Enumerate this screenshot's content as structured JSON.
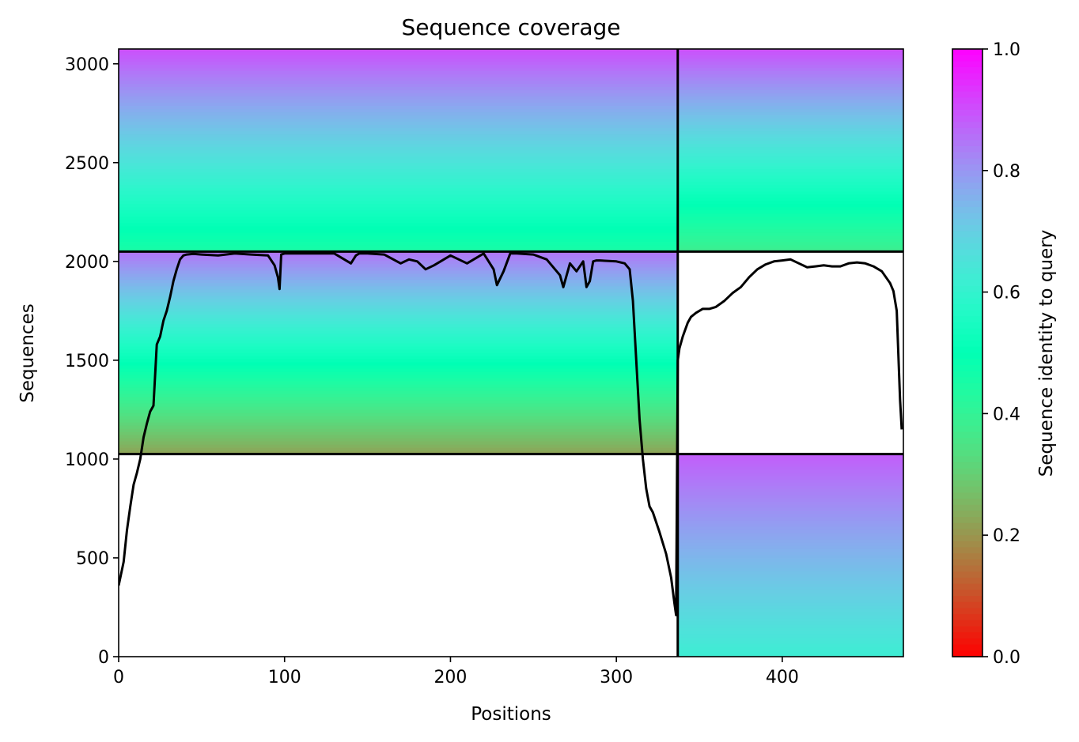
{
  "chart_data": {
    "type": "heatmap",
    "title": "Sequence coverage",
    "xlabel": "Positions",
    "ylabel": "Sequences",
    "xlim": [
      0,
      473
    ],
    "ylim": [
      0,
      3075
    ],
    "x_ticks": [
      "0",
      "100",
      "200",
      "300",
      "400"
    ],
    "y_ticks": [
      "0",
      "500",
      "1000",
      "1500",
      "2000",
      "2500",
      "3000"
    ],
    "colorbar": {
      "label": "Sequence identity to query",
      "colormap": "rainbow_r",
      "range": [
        0,
        1
      ],
      "ticks": [
        "0.0",
        "0.2",
        "0.4",
        "0.6",
        "0.8",
        "1.0"
      ]
    },
    "chain_boundary_x": 337,
    "block_boundaries_y": [
      1025,
      2050
    ],
    "blocks": [
      {
        "x_range": [
          0,
          337
        ],
        "y_range": [
          2050,
          3075
        ],
        "identity_range": [
          0.45,
          0.9
        ]
      },
      {
        "x_range": [
          337,
          473
        ],
        "y_range": [
          2050,
          3075
        ],
        "identity_range": [
          0.38,
          0.9
        ]
      },
      {
        "x_range": [
          0,
          337
        ],
        "y_range": [
          1025,
          2050
        ],
        "identity_range": [
          0.22,
          0.85
        ]
      },
      {
        "x_range": [
          337,
          473
        ],
        "y_range": [
          0,
          1025
        ],
        "identity_range": [
          0.62,
          0.88
        ]
      }
    ],
    "coverage_line": {
      "color": "#000000",
      "x": [
        0,
        3,
        5,
        7,
        9,
        11,
        13,
        15,
        17,
        19,
        21,
        23,
        25,
        27,
        29,
        31,
        33,
        35,
        37,
        39,
        41,
        45,
        50,
        60,
        70,
        80,
        90,
        94,
        96,
        97,
        98,
        100,
        110,
        130,
        140,
        143,
        145,
        150,
        160,
        170,
        175,
        180,
        185,
        190,
        200,
        210,
        220,
        226,
        228,
        232,
        236,
        240,
        250,
        258,
        262,
        266,
        268,
        270,
        272,
        276,
        280,
        282,
        284,
        286,
        288,
        290,
        300,
        305,
        308,
        310,
        312,
        314,
        316,
        318,
        320,
        322,
        326,
        330,
        333,
        335,
        336,
        337,
        338,
        340,
        343,
        345,
        348,
        352,
        356,
        360,
        365,
        370,
        375,
        380,
        385,
        390,
        395,
        400,
        405,
        410,
        415,
        420,
        425,
        430,
        435,
        440,
        445,
        450,
        455,
        460,
        465,
        467,
        469,
        471,
        472
      ],
      "y": [
        360,
        480,
        640,
        760,
        870,
        930,
        1000,
        1110,
        1180,
        1240,
        1270,
        1580,
        1620,
        1700,
        1750,
        1820,
        1900,
        1960,
        2010,
        2030,
        2035,
        2038,
        2035,
        2030,
        2040,
        2035,
        2030,
        1980,
        1920,
        1860,
        2035,
        2040,
        2040,
        2040,
        1990,
        2030,
        2040,
        2040,
        2035,
        1990,
        2010,
        2000,
        1960,
        1980,
        2030,
        1990,
        2040,
        1960,
        1880,
        1950,
        2040,
        2040,
        2035,
        2010,
        1970,
        1930,
        1870,
        1930,
        1990,
        1950,
        2000,
        1870,
        1900,
        2000,
        2005,
        2005,
        2000,
        1990,
        1960,
        1800,
        1500,
        1200,
        1000,
        850,
        760,
        730,
        630,
        520,
        400,
        270,
        210,
        1500,
        1560,
        1620,
        1690,
        1720,
        1740,
        1760,
        1760,
        1770,
        1800,
        1840,
        1870,
        1920,
        1960,
        1985,
        2000,
        2005,
        2010,
        1990,
        1970,
        1975,
        1980,
        1975,
        1975,
        1990,
        1995,
        1990,
        1975,
        1950,
        1890,
        1850,
        1750,
        1300,
        1150
      ]
    }
  }
}
